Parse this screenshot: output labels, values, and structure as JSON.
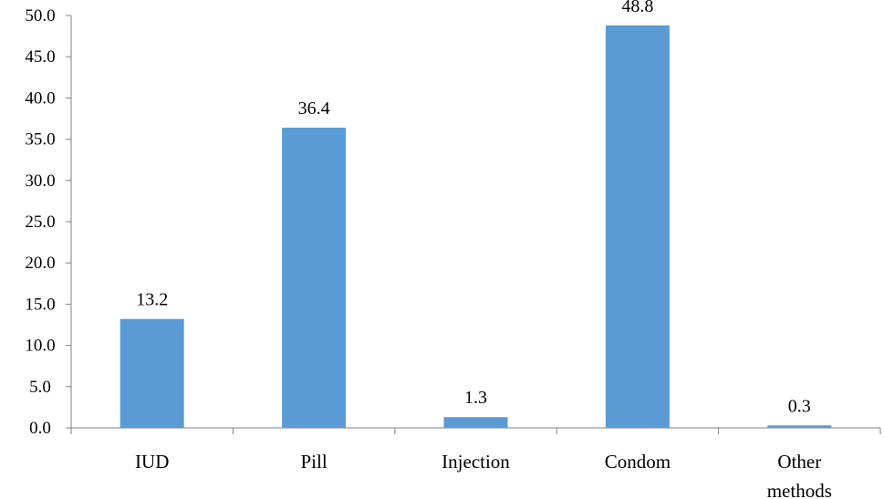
{
  "chart_data": {
    "type": "bar",
    "title": "",
    "xlabel": "",
    "ylabel": "",
    "categories": [
      [
        "IUD"
      ],
      [
        "Pill"
      ],
      [
        "Injection"
      ],
      [
        "Condom"
      ],
      [
        "Other",
        "methods"
      ]
    ],
    "values": [
      13.2,
      36.4,
      1.3,
      48.8,
      0.3
    ],
    "data_labels": [
      "13.2",
      "36.4",
      "1.3",
      "48.8",
      "0.3"
    ],
    "ylim": [
      0,
      50
    ],
    "yticks": [
      0,
      5,
      10,
      15,
      20,
      25,
      30,
      35,
      40,
      45,
      50
    ],
    "ytick_labels": [
      "0.0",
      "5.0",
      "10.0",
      "15.0",
      "20.0",
      "25.0",
      "30.0",
      "35.0",
      "40.0",
      "45.0",
      "50.0"
    ],
    "grid": false,
    "legend": "none",
    "bar_color": "#5b9bd5",
    "axis_color": "#7f7f7f"
  }
}
